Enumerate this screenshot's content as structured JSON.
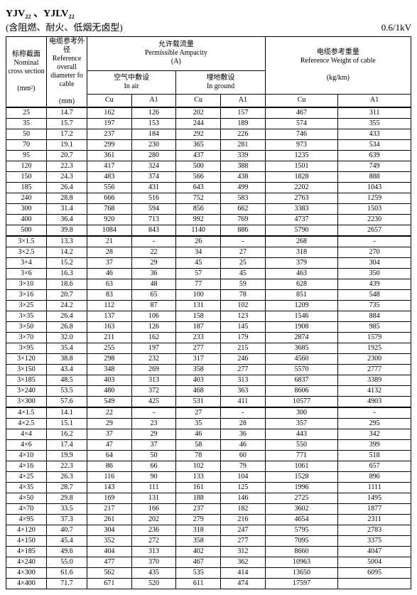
{
  "header": {
    "title": "YJV₂₂ 、YJLV₂₂",
    "subtitle": "(含阻燃、耐火、低烟无卤型)",
    "voltage": "0.6/1kV"
  },
  "columns": {
    "section_cn": "标称截面",
    "section_en": "Nominal cross section",
    "section_unit": "(mm²)",
    "diameter_cn": "电缆参考外径",
    "diameter_en": "Reference overall diameter fo cable",
    "diameter_unit": "(mm)",
    "ampacity_cn": "允许载流量",
    "ampacity_en": "Permissible Ampacity",
    "ampacity_unit": "(A)",
    "air_cn": "空气中敷设",
    "air_en": "In air",
    "ground_cn": "埋地敷设",
    "ground_en": "In ground",
    "weight_cn": "电缆参考重量",
    "weight_en": "Reference Weight of cable",
    "weight_unit": "(kg/km)",
    "cu": "Cu",
    "al": "A1"
  },
  "rows": [
    {
      "s": "25",
      "d": "14.7",
      "aCu": "162",
      "aAl": "126",
      "gCu": "202",
      "gAl": "157",
      "wCu": "467",
      "wAl": "311",
      "sec": 1
    },
    {
      "s": "35",
      "d": "15.7",
      "aCu": "197",
      "aAl": "153",
      "gCu": "244",
      "gAl": "189",
      "wCu": "574",
      "wAl": "355"
    },
    {
      "s": "50",
      "d": "17.2",
      "aCu": "237",
      "aAl": "184",
      "gCu": "292",
      "gAl": "226",
      "wCu": "746",
      "wAl": "433"
    },
    {
      "s": "70",
      "d": "19.1",
      "aCu": "299",
      "aAl": "230",
      "gCu": "365",
      "gAl": "281",
      "wCu": "973",
      "wAl": "534"
    },
    {
      "s": "95",
      "d": "20.7",
      "aCu": "361",
      "aAl": "280",
      "gCu": "437",
      "gAl": "339",
      "wCu": "1235",
      "wAl": "639"
    },
    {
      "s": "120",
      "d": "22.3",
      "aCu": "417",
      "aAl": "324",
      "gCu": "500",
      "gAl": "388",
      "wCu": "1501",
      "wAl": "749"
    },
    {
      "s": "150",
      "d": "24.3",
      "aCu": "483",
      "aAl": "374",
      "gCu": "566",
      "gAl": "438",
      "wCu": "1828",
      "wAl": "888"
    },
    {
      "s": "185",
      "d": "26.4",
      "aCu": "556",
      "aAl": "431",
      "gCu": "643",
      "gAl": "499",
      "wCu": "2202",
      "wAl": "1043"
    },
    {
      "s": "240",
      "d": "28.8",
      "aCu": "666",
      "aAl": "516",
      "gCu": "752",
      "gAl": "583",
      "wCu": "2763",
      "wAl": "1259"
    },
    {
      "s": "300",
      "d": "31.4",
      "aCu": "768",
      "aAl": "594",
      "gCu": "856",
      "gAl": "662",
      "wCu": "3383",
      "wAl": "1503"
    },
    {
      "s": "400",
      "d": "36.4",
      "aCu": "920",
      "aAl": "713",
      "gCu": "992",
      "gAl": "769",
      "wCu": "4737",
      "wAl": "2230"
    },
    {
      "s": "500",
      "d": "39.8",
      "aCu": "1084",
      "aAl": "843",
      "gCu": "1140",
      "gAl": "886",
      "wCu": "5790",
      "wAl": "2657"
    },
    {
      "s": "3×1.5",
      "d": "13.3",
      "aCu": "21",
      "aAl": "-",
      "gCu": "26",
      "gAl": "-",
      "wCu": "268",
      "wAl": "-",
      "sec": 1
    },
    {
      "s": "3×2.5",
      "d": "14.2",
      "aCu": "28",
      "aAl": "22",
      "gCu": "34",
      "gAl": "27",
      "wCu": "318",
      "wAl": "270"
    },
    {
      "s": "3×4",
      "d": "15.2",
      "aCu": "37",
      "aAl": "29",
      "gCu": "45",
      "gAl": "25",
      "wCu": "379",
      "wAl": "304"
    },
    {
      "s": "3×6",
      "d": "16.3",
      "aCu": "46",
      "aAl": "36",
      "gCu": "57",
      "gAl": "45",
      "wCu": "463",
      "wAl": "350"
    },
    {
      "s": "3×10",
      "d": "18.6",
      "aCu": "63",
      "aAl": "48",
      "gCu": "77",
      "gAl": "59",
      "wCu": "628",
      "wAl": "439"
    },
    {
      "s": "3×16",
      "d": "20.7",
      "aCu": "83",
      "aAl": "65",
      "gCu": "100",
      "gAl": "78",
      "wCu": "851",
      "wAl": "548"
    },
    {
      "s": "3×25",
      "d": "24.2",
      "aCu": "112",
      "aAl": "87",
      "gCu": "131",
      "gAl": "102",
      "wCu": "1209",
      "wAl": "735"
    },
    {
      "s": "3×35",
      "d": "26.4",
      "aCu": "137",
      "aAl": "106",
      "gCu": "158",
      "gAl": "123",
      "wCu": "1546",
      "wAl": "884"
    },
    {
      "s": "3×50",
      "d": "26.8",
      "aCu": "163",
      "aAl": "126",
      "gCu": "187",
      "gAl": "145",
      "wCu": "1908",
      "wAl": "985"
    },
    {
      "s": "3×70",
      "d": "32.0",
      "aCu": "211",
      "aAl": "162",
      "gCu": "233",
      "gAl": "179",
      "wCu": "2874",
      "wAl": "1579"
    },
    {
      "s": "3×95",
      "d": "35.4",
      "aCu": "255",
      "aAl": "197",
      "gCu": "277",
      "gAl": "215",
      "wCu": "3685",
      "wAl": "1925"
    },
    {
      "s": "3×120",
      "d": "38.8",
      "aCu": "298",
      "aAl": "232",
      "gCu": "317",
      "gAl": "246",
      "wCu": "4560",
      "wAl": "2300"
    },
    {
      "s": "3×150",
      "d": "43.4",
      "aCu": "348",
      "aAl": "269",
      "gCu": "358",
      "gAl": "277",
      "wCu": "5570",
      "wAl": "2777"
    },
    {
      "s": "3×185",
      "d": "48.5",
      "aCu": "403",
      "aAl": "313",
      "gCu": "403",
      "gAl": "313",
      "wCu": "6837",
      "wAl": "3389"
    },
    {
      "s": "3×240",
      "d": "53.5",
      "aCu": "480",
      "aAl": "372",
      "gCu": "468",
      "gAl": "363",
      "wCu": "8606",
      "wAl": "4132"
    },
    {
      "s": "3×300",
      "d": "57.6",
      "aCu": "549",
      "aAl": "425",
      "gCu": "531",
      "gAl": "411",
      "wCu": "10577",
      "wAl": "4903"
    },
    {
      "s": "4×1.5",
      "d": "14.1",
      "aCu": "22",
      "aAl": "-",
      "gCu": "27",
      "gAl": "-",
      "wCu": "300",
      "wAl": "-",
      "sec": 1
    },
    {
      "s": "4×2.5",
      "d": "15.1",
      "aCu": "29",
      "aAl": "23",
      "gCu": "35",
      "gAl": "28",
      "wCu": "357",
      "wAl": "295"
    },
    {
      "s": "4×4",
      "d": "16.2",
      "aCu": "37",
      "aAl": "29",
      "gCu": "46",
      "gAl": "36",
      "wCu": "443",
      "wAl": "342"
    },
    {
      "s": "4×6",
      "d": "17.4",
      "aCu": "47",
      "aAl": "37",
      "gCu": "58",
      "gAl": "46",
      "wCu": "550",
      "wAl": "399"
    },
    {
      "s": "4×10",
      "d": "19.9",
      "aCu": "64",
      "aAl": "50",
      "gCu": "78",
      "gAl": "60",
      "wCu": "771",
      "wAl": "518"
    },
    {
      "s": "4×16",
      "d": "22.3",
      "aCu": "86",
      "aAl": "66",
      "gCu": "102",
      "gAl": "79",
      "wCu": "1061",
      "wAl": "657"
    },
    {
      "s": "4×25",
      "d": "26.3",
      "aCu": "116",
      "aAl": "90",
      "gCu": "133",
      "gAl": "104",
      "wCu": "1528",
      "wAl": "896"
    },
    {
      "s": "4×35",
      "d": "28.7",
      "aCu": "143",
      "aAl": "111",
      "gCu": "161",
      "gAl": "125",
      "wCu": "1996",
      "wAl": "1111"
    },
    {
      "s": "4×50",
      "d": "29.8",
      "aCu": "169",
      "aAl": "131",
      "gCu": "188",
      "gAl": "146",
      "wCu": "2725",
      "wAl": "1495"
    },
    {
      "s": "4×70",
      "d": "33.5",
      "aCu": "217",
      "aAl": "166",
      "gCu": "237",
      "gAl": "182",
      "wCu": "3602",
      "wAl": "1877"
    },
    {
      "s": "4×95",
      "d": "37.3",
      "aCu": "261",
      "aAl": "202",
      "gCu": "279",
      "gAl": "216",
      "wCu": "4654",
      "wAl": "2311"
    },
    {
      "s": "4×120",
      "d": "40.7",
      "aCu": "304",
      "aAl": "236",
      "gCu": "318",
      "gAl": "247",
      "wCu": "5795",
      "wAl": "2783"
    },
    {
      "s": "4×150",
      "d": "45.4",
      "aCu": "352",
      "aAl": "272",
      "gCu": "358",
      "gAl": "277",
      "wCu": "7095",
      "wAl": "3375"
    },
    {
      "s": "4×185",
      "d": "49.6",
      "aCu": "404",
      "aAl": "313",
      "gCu": "402",
      "gAl": "312",
      "wCu": "8660",
      "wAl": "4047"
    },
    {
      "s": "4×240",
      "d": "55.0",
      "aCu": "477",
      "aAl": "370",
      "gCu": "467",
      "gAl": "362",
      "wCu": "10963",
      "wAl": "5004"
    },
    {
      "s": "4×300",
      "d": "61.6",
      "aCu": "562",
      "aAl": "435",
      "gCu": "535",
      "gAl": "414",
      "wCu": "13650",
      "wAl": "6095"
    },
    {
      "s": "4×400",
      "d": "71.7",
      "aCu": "671",
      "aAl": "520",
      "gCu": "611",
      "gAl": "474",
      "wCu": "17597",
      "wAl": ""
    }
  ],
  "style": {
    "border_color": "#000000",
    "bg": "#ffffff",
    "font": "Times New Roman",
    "title_size": 14,
    "cell_size": 10
  }
}
